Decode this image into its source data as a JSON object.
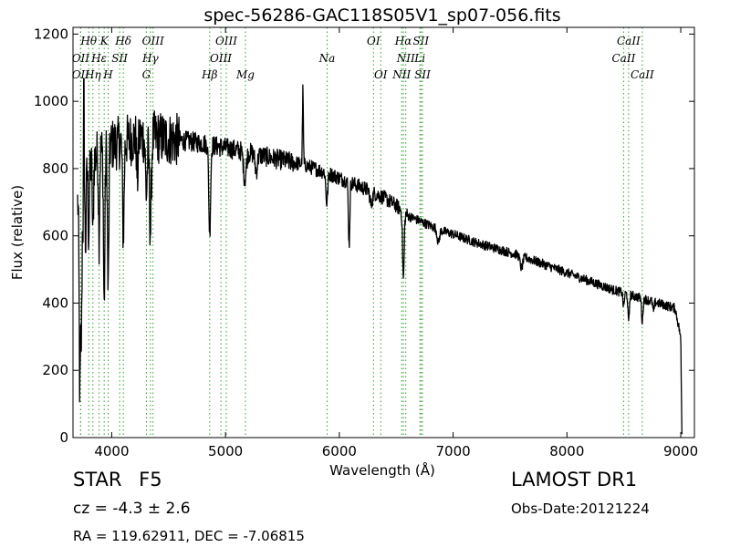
{
  "chart_data": {
    "type": "line",
    "title": "spec-56286-GAC118S05V1_sp07-056.fits",
    "xlabel": "Wavelength (Å)",
    "ylabel": "Flux (relative)",
    "xlim": [
      3660,
      9120
    ],
    "ylim": [
      0,
      1220
    ],
    "xticks": [
      4000,
      5000,
      6000,
      7000,
      8000,
      9000
    ],
    "yticks": [
      0,
      200,
      400,
      600,
      800,
      1000,
      1200
    ],
    "grid": false,
    "line_color": "#000000",
    "line_marker_color": "#2ca02c",
    "continuum": [
      [
        3700,
        700
      ],
      [
        3750,
        780
      ],
      [
        3800,
        800
      ],
      [
        3850,
        830
      ],
      [
        3900,
        850
      ],
      [
        3950,
        860
      ],
      [
        4000,
        870
      ],
      [
        4100,
        880
      ],
      [
        4200,
        890
      ],
      [
        4300,
        895
      ],
      [
        4400,
        892
      ],
      [
        4500,
        888
      ],
      [
        4600,
        884
      ],
      [
        4700,
        880
      ],
      [
        4800,
        875
      ],
      [
        4900,
        868
      ],
      [
        5000,
        862
      ],
      [
        5100,
        855
      ],
      [
        5200,
        848
      ],
      [
        5300,
        840
      ],
      [
        5400,
        832
      ],
      [
        5500,
        825
      ],
      [
        5600,
        818
      ],
      [
        5700,
        810
      ],
      [
        5800,
        798
      ],
      [
        5900,
        786
      ],
      [
        6000,
        772
      ],
      [
        6100,
        758
      ],
      [
        6200,
        744
      ],
      [
        6300,
        728
      ],
      [
        6400,
        712
      ],
      [
        6500,
        690
      ],
      [
        6600,
        660
      ],
      [
        6700,
        645
      ],
      [
        6800,
        630
      ],
      [
        6900,
        615
      ],
      [
        7000,
        605
      ],
      [
        7200,
        580
      ],
      [
        7400,
        560
      ],
      [
        7600,
        540
      ],
      [
        7800,
        515
      ],
      [
        8000,
        490
      ],
      [
        8200,
        465
      ],
      [
        8400,
        440
      ],
      [
        8600,
        420
      ],
      [
        8800,
        400
      ],
      [
        8950,
        385
      ],
      [
        9000,
        300
      ],
      [
        9010,
        10
      ]
    ],
    "absorption_features": [
      {
        "center": 3720,
        "depth": 600,
        "width": 6
      },
      {
        "center": 3734,
        "depth": 420,
        "width": 5
      },
      {
        "center": 3750,
        "depth": 180,
        "width": 5
      },
      {
        "center": 3770,
        "depth": 220,
        "width": 5
      },
      {
        "center": 3798,
        "depth": 200,
        "width": 5
      },
      {
        "center": 3835,
        "depth": 230,
        "width": 5
      },
      {
        "center": 3889,
        "depth": 250,
        "width": 5
      },
      {
        "center": 3934,
        "depth": 470,
        "width": 6
      },
      {
        "center": 3969,
        "depth": 430,
        "width": 6
      },
      {
        "center": 4102,
        "depth": 280,
        "width": 7
      },
      {
        "center": 4226,
        "depth": 120,
        "width": 6
      },
      {
        "center": 4305,
        "depth": 170,
        "width": 8
      },
      {
        "center": 4340,
        "depth": 280,
        "width": 8
      },
      {
        "center": 4861,
        "depth": 260,
        "width": 8
      },
      {
        "center": 5170,
        "depth": 80,
        "width": 12
      },
      {
        "center": 5270,
        "depth": 50,
        "width": 10
      },
      {
        "center": 5890,
        "depth": 90,
        "width": 8
      },
      {
        "center": 6086,
        "depth": 190,
        "width": 6
      },
      {
        "center": 6280,
        "depth": 40,
        "width": 10
      },
      {
        "center": 6563,
        "depth": 200,
        "width": 7
      },
      {
        "center": 6870,
        "depth": 40,
        "width": 10
      },
      {
        "center": 7600,
        "depth": 35,
        "width": 12
      },
      {
        "center": 8498,
        "depth": 40,
        "width": 6
      },
      {
        "center": 8542,
        "depth": 85,
        "width": 6
      },
      {
        "center": 8662,
        "depth": 70,
        "width": 6
      },
      {
        "center": 8760,
        "depth": 30,
        "width": 6
      }
    ],
    "emission_features": [
      {
        "center": 3755,
        "height": 380,
        "width": 3
      },
      {
        "center": 5680,
        "height": 220,
        "width": 4
      }
    ],
    "noise": [
      {
        "from": 3700,
        "to": 4600,
        "amplitude": 80
      },
      {
        "from": 4600,
        "to": 5600,
        "amplitude": 30
      },
      {
        "from": 5600,
        "to": 6600,
        "amplitude": 22
      },
      {
        "from": 6600,
        "to": 9000,
        "amplitude": 14
      }
    ],
    "line_markers": [
      {
        "label": "OII",
        "wavelength": 3727,
        "row": 2
      },
      {
        "label": "Hθ",
        "wavelength": 3798,
        "row": 0
      },
      {
        "label": "OII",
        "wavelength": 3727,
        "row": 1
      },
      {
        "label": "Hη",
        "wavelength": 3835,
        "row": 2
      },
      {
        "label": "K",
        "wavelength": 3934,
        "row": 0
      },
      {
        "label": "Hε",
        "wavelength": 3889,
        "row": 1
      },
      {
        "label": "SII",
        "wavelength": 4070,
        "row": 1
      },
      {
        "label": "H",
        "wavelength": 3969,
        "row": 2
      },
      {
        "label": "Hδ",
        "wavelength": 4102,
        "row": 0
      },
      {
        "label": "OIII",
        "wavelength": 4363,
        "row": 0
      },
      {
        "label": "Hγ",
        "wavelength": 4340,
        "row": 1
      },
      {
        "label": "G",
        "wavelength": 4305,
        "row": 2
      },
      {
        "label": "OIII",
        "wavelength": 5007,
        "row": 0
      },
      {
        "label": "OIII",
        "wavelength": 4959,
        "row": 1
      },
      {
        "label": "Hβ",
        "wavelength": 4861,
        "row": 2
      },
      {
        "label": "Mg",
        "wavelength": 5175,
        "row": 2
      },
      {
        "label": "Na",
        "wavelength": 5893,
        "row": 1
      },
      {
        "label": "OI",
        "wavelength": 6300,
        "row": 0
      },
      {
        "label": "OI",
        "wavelength": 6364,
        "row": 2
      },
      {
        "label": "Hα",
        "wavelength": 6563,
        "row": 0
      },
      {
        "label": "SII",
        "wavelength": 6717,
        "row": 0
      },
      {
        "label": "NII",
        "wavelength": 6584,
        "row": 1
      },
      {
        "label": "Li",
        "wavelength": 6708,
        "row": 1
      },
      {
        "label": "NII",
        "wavelength": 6548,
        "row": 2
      },
      {
        "label": "SII",
        "wavelength": 6731,
        "row": 2
      },
      {
        "label": "CaII",
        "wavelength": 8542,
        "row": 0
      },
      {
        "label": "CaII",
        "wavelength": 8498,
        "row": 1
      },
      {
        "label": "CaII",
        "wavelength": 8662,
        "row": 2
      }
    ]
  },
  "info": {
    "object_class": "STAR",
    "subclass": "F5",
    "redshift": "cz = -4.3 ± 2.6",
    "coordinates": "RA = 119.62911, DEC = -7.06815",
    "survey": "LAMOST DR1",
    "obs_date": "Obs-Date:20121224"
  }
}
